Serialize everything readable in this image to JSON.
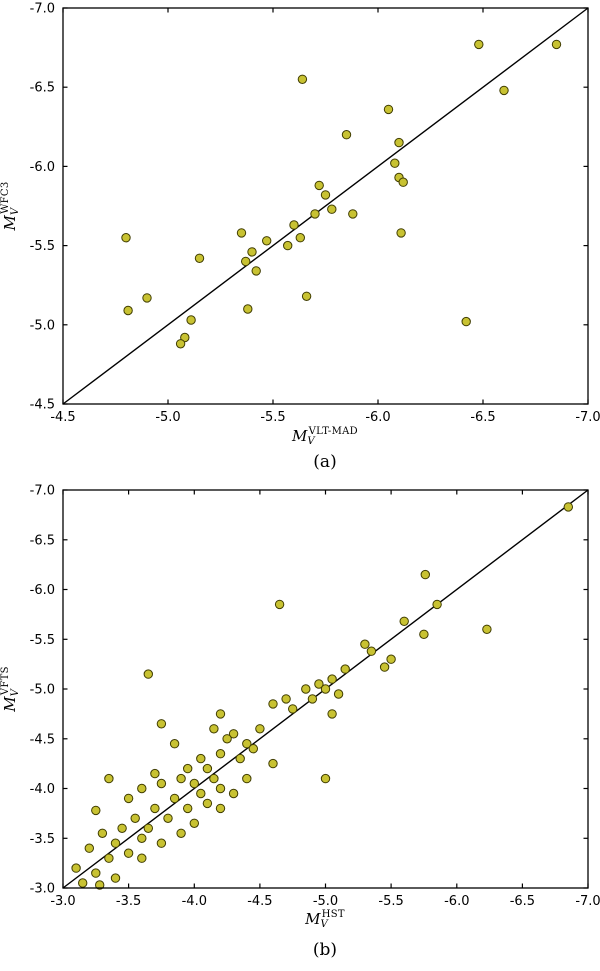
{
  "figure": {
    "background": "#ffffff"
  },
  "chart_data": [
    {
      "type": "scatter",
      "panel_label": "(a)",
      "xlabel": {
        "base": "M",
        "sub": "V",
        "sup": "VLT-MAD"
      },
      "ylabel": {
        "base": "M",
        "sub": "V",
        "sup": "WFC3"
      },
      "xlim": [
        -4.5,
        -7.0
      ],
      "ylim": [
        -4.5,
        -7.0
      ],
      "xticks": [
        -4.5,
        -5.0,
        -5.5,
        -6.0,
        -6.5,
        -7.0
      ],
      "yticks": [
        -4.5,
        -5.0,
        -5.5,
        -6.0,
        -6.5,
        -7.0
      ],
      "grid": false,
      "legend": "none",
      "identity_line": true,
      "line_color": "#000000",
      "marker_color": "#c8c232",
      "marker_edge_color": "#3f3c00",
      "points": [
        [
          -5.64,
          -6.55
        ],
        [
          -6.48,
          -6.77
        ],
        [
          -6.85,
          -6.77
        ],
        [
          -6.6,
          -6.48
        ],
        [
          -6.05,
          -6.36
        ],
        [
          -5.85,
          -6.2
        ],
        [
          -6.1,
          -6.15
        ],
        [
          -6.08,
          -6.02
        ],
        [
          -6.1,
          -5.93
        ],
        [
          -6.12,
          -5.9
        ],
        [
          -5.72,
          -5.88
        ],
        [
          -5.75,
          -5.82
        ],
        [
          -5.78,
          -5.73
        ],
        [
          -5.7,
          -5.7
        ],
        [
          -5.88,
          -5.7
        ],
        [
          -5.6,
          -5.63
        ],
        [
          -5.63,
          -5.55
        ],
        [
          -5.35,
          -5.58
        ],
        [
          -5.47,
          -5.53
        ],
        [
          -5.57,
          -5.5
        ],
        [
          -5.4,
          -5.46
        ],
        [
          -5.37,
          -5.4
        ],
        [
          -5.15,
          -5.42
        ],
        [
          -5.42,
          -5.34
        ],
        [
          -4.8,
          -5.55
        ],
        [
          -6.11,
          -5.58
        ],
        [
          -5.66,
          -5.18
        ],
        [
          -4.9,
          -5.17
        ],
        [
          -4.81,
          -5.09
        ],
        [
          -5.38,
          -5.1
        ],
        [
          -5.11,
          -5.03
        ],
        [
          -6.42,
          -5.02
        ],
        [
          -5.08,
          -4.92
        ],
        [
          -5.06,
          -4.88
        ]
      ]
    },
    {
      "type": "scatter",
      "panel_label": "(b)",
      "xlabel": {
        "base": "M",
        "sub": "V",
        "sup": "HST"
      },
      "ylabel": {
        "base": "M",
        "sub": "V",
        "sup": "VFTS"
      },
      "xlim": [
        -3.0,
        -7.0
      ],
      "ylim": [
        -3.0,
        -7.0
      ],
      "xticks": [
        -3.0,
        -3.5,
        -4.0,
        -4.5,
        -5.0,
        -5.5,
        -6.0,
        -6.5,
        -7.0
      ],
      "yticks": [
        -3.0,
        -3.5,
        -4.0,
        -4.5,
        -5.0,
        -5.5,
        -6.0,
        -6.5,
        -7.0
      ],
      "grid": false,
      "legend": "none",
      "identity_line": true,
      "line_color": "#000000",
      "marker_color": "#c8c232",
      "marker_edge_color": "#3f3c00",
      "points": [
        [
          -6.85,
          -6.83
        ],
        [
          -5.76,
          -6.15
        ],
        [
          -5.85,
          -5.85
        ],
        [
          -4.65,
          -5.85
        ],
        [
          -6.23,
          -5.6
        ],
        [
          -5.6,
          -5.68
        ],
        [
          -5.75,
          -5.55
        ],
        [
          -5.3,
          -5.45
        ],
        [
          -5.35,
          -5.38
        ],
        [
          -5.5,
          -5.3
        ],
        [
          -5.45,
          -5.22
        ],
        [
          -5.15,
          -5.2
        ],
        [
          -3.65,
          -5.15
        ],
        [
          -5.05,
          -5.1
        ],
        [
          -4.95,
          -5.05
        ],
        [
          -5.0,
          -5.0
        ],
        [
          -4.85,
          -5.0
        ],
        [
          -5.1,
          -4.95
        ],
        [
          -4.9,
          -4.9
        ],
        [
          -4.7,
          -4.9
        ],
        [
          -4.6,
          -4.85
        ],
        [
          -4.75,
          -4.8
        ],
        [
          -5.05,
          -4.75
        ],
        [
          -4.2,
          -4.75
        ],
        [
          -3.75,
          -4.65
        ],
        [
          -4.15,
          -4.6
        ],
        [
          -4.5,
          -4.6
        ],
        [
          -4.3,
          -4.55
        ],
        [
          -4.25,
          -4.5
        ],
        [
          -4.4,
          -4.45
        ],
        [
          -3.85,
          -4.45
        ],
        [
          -4.45,
          -4.4
        ],
        [
          -4.2,
          -4.35
        ],
        [
          -4.05,
          -4.3
        ],
        [
          -4.35,
          -4.3
        ],
        [
          -4.6,
          -4.25
        ],
        [
          -3.95,
          -4.2
        ],
        [
          -4.1,
          -4.2
        ],
        [
          -3.7,
          -4.15
        ],
        [
          -3.9,
          -4.1
        ],
        [
          -4.15,
          -4.1
        ],
        [
          -4.4,
          -4.1
        ],
        [
          -3.35,
          -4.1
        ],
        [
          -5.0,
          -4.1
        ],
        [
          -4.0,
          -4.05
        ],
        [
          -3.75,
          -4.05
        ],
        [
          -4.2,
          -4.0
        ],
        [
          -3.6,
          -4.0
        ],
        [
          -4.05,
          -3.95
        ],
        [
          -4.3,
          -3.95
        ],
        [
          -3.85,
          -3.9
        ],
        [
          -3.5,
          -3.9
        ],
        [
          -4.1,
          -3.85
        ],
        [
          -3.25,
          -3.78
        ],
        [
          -3.7,
          -3.8
        ],
        [
          -3.95,
          -3.8
        ],
        [
          -4.2,
          -3.8
        ],
        [
          -3.55,
          -3.7
        ],
        [
          -3.8,
          -3.7
        ],
        [
          -4.0,
          -3.65
        ],
        [
          -3.45,
          -3.6
        ],
        [
          -3.65,
          -3.6
        ],
        [
          -3.3,
          -3.55
        ],
        [
          -3.9,
          -3.55
        ],
        [
          -3.6,
          -3.5
        ],
        [
          -3.4,
          -3.45
        ],
        [
          -3.75,
          -3.45
        ],
        [
          -3.2,
          -3.4
        ],
        [
          -3.5,
          -3.35
        ],
        [
          -3.35,
          -3.3
        ],
        [
          -3.6,
          -3.3
        ],
        [
          -3.1,
          -3.2
        ],
        [
          -3.25,
          -3.15
        ],
        [
          -3.4,
          -3.1
        ],
        [
          -3.15,
          -3.05
        ],
        [
          -3.28,
          -3.03
        ]
      ]
    }
  ]
}
